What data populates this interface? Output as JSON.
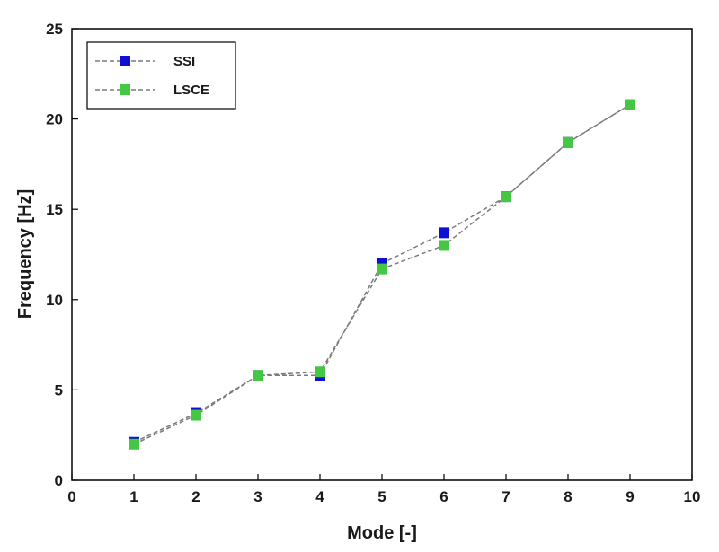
{
  "chart_data": {
    "type": "line",
    "xlabel": "Mode [-]",
    "ylabel": "Frequency [Hz]",
    "xlim": [
      0,
      10
    ],
    "ylim": [
      0,
      25
    ],
    "xticks": [
      "0",
      "1",
      "2",
      "3",
      "4",
      "5",
      "6",
      "7",
      "8",
      "9",
      "10"
    ],
    "yticks": [
      "0",
      "5",
      "10",
      "15",
      "20",
      "25"
    ],
    "grid": false,
    "legend_position": "top-left",
    "series": [
      {
        "name": "SSI",
        "color": "#1010d0",
        "line_color": "#7a7a7a",
        "line_style": "dashed",
        "marker": "square",
        "x": [
          1,
          2,
          3,
          4,
          5,
          6,
          7,
          8,
          9
        ],
        "y": [
          2.1,
          3.7,
          5.8,
          5.8,
          12.0,
          13.7,
          15.7,
          18.7,
          20.8
        ]
      },
      {
        "name": "LSCE",
        "color": "#44c844",
        "line_color": "#7a7a7a",
        "line_style": "dashed",
        "marker": "square",
        "x": [
          1,
          2,
          3,
          4,
          5,
          6,
          7,
          8,
          9
        ],
        "y": [
          2.0,
          3.6,
          5.8,
          6.0,
          11.7,
          13.0,
          15.7,
          18.7,
          20.8
        ]
      }
    ]
  }
}
